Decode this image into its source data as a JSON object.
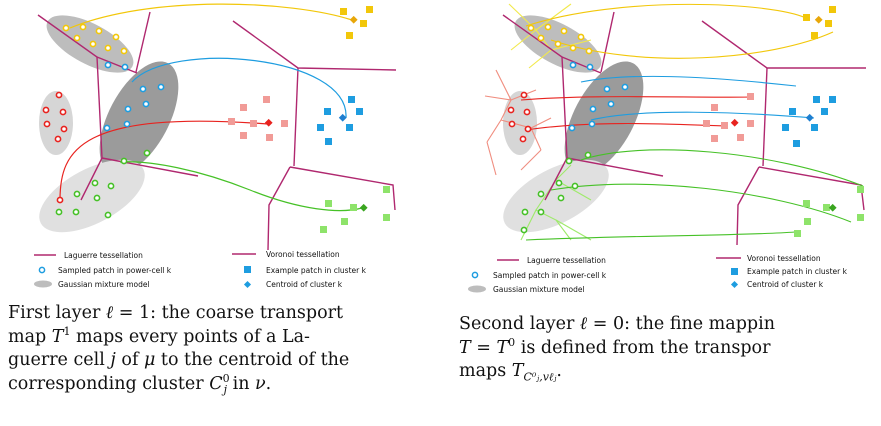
{
  "colors": {
    "laguerre": "#b0286f",
    "voronoi": "#b0286f",
    "yellow": "#f2c70a",
    "red": "#e8231f",
    "pink": "#f19b97",
    "blue": "#1e9de0",
    "green": "#46c127",
    "lightgreen": "#8ee36a",
    "gmm_light": "#d8d8d8",
    "gmm_dark": "#999999"
  },
  "legend": {
    "laguerre": "Laguerre tessellation",
    "sampled": "Sampled patch in power-cell k",
    "gmm": "Gaussian mixture model",
    "voronoi": "Voronoi tessellation",
    "example": "Example patch in cluster k",
    "centroid": "Centroid of cluster k"
  },
  "captions": {
    "left": {
      "line1_a": "First layer ",
      "line1_b": "ℓ",
      "line1_c": " = 1: the coarse transport",
      "line2_a": "map ",
      "line2_b": "T",
      "line2_sup": "1",
      "line2_c": " maps every points of a La-",
      "line3_a": "guerre cell ",
      "line3_b": "j",
      "line3_c": " of ",
      "line3_d": "μ",
      "line3_e": " to the centroid of the",
      "line4_a": "corresponding cluster ",
      "line4_b": "C",
      "line4_sup": "0",
      "line4_sub": "j",
      "line4_c": " in ",
      "line4_d": "ν",
      "line4_e": "."
    },
    "right": {
      "line1_a": "Second layer ",
      "line1_b": "ℓ",
      "line1_c": " = 0: the fine mappin",
      "line2_a": "T",
      "line2_b": " = ",
      "line2_c": "T",
      "line2_sup": "0",
      "line2_d": " is defined from the transpor",
      "line3_a": "maps ",
      "line3_b": "T",
      "line3_sub": "C⁰ⱼ,vℓⱼ",
      "line3_c": "."
    }
  }
}
